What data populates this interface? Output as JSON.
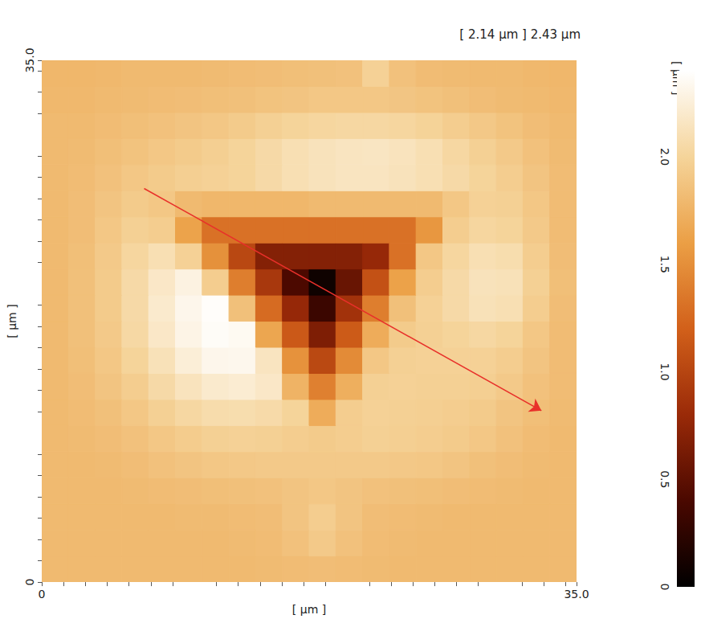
{
  "chart_data": {
    "type": "heatmap",
    "title": "[ 2.14 µm ] 2.43 µm",
    "x_label": "[ µm ]",
    "y_label": "[ µm ]",
    "xlim": [
      0,
      35
    ],
    "ylim": [
      0,
      35
    ],
    "xticks": [
      0,
      {
        "value": 35,
        "label": "35.0"
      }
    ],
    "yticks": [
      0,
      {
        "value": 35,
        "label": "35.0"
      }
    ],
    "x": [
      0.875,
      2.625,
      4.375,
      6.125,
      7.875,
      9.625,
      11.375,
      13.125,
      14.875,
      16.625,
      18.375,
      20.125,
      21.875,
      23.625,
      25.375,
      27.125,
      28.875,
      30.625,
      32.375,
      34.125
    ],
    "y": [
      0.875,
      2.625,
      4.375,
      6.125,
      7.875,
      9.625,
      11.375,
      13.125,
      14.875,
      16.625,
      18.375,
      20.125,
      21.875,
      23.625,
      25.375,
      27.125,
      28.875,
      30.625,
      32.375,
      34.125
    ],
    "z": [
      [
        1.8,
        1.8,
        1.8,
        1.8,
        1.8,
        1.8,
        1.8,
        1.8,
        1.81,
        1.82,
        1.83,
        1.82,
        1.81,
        1.8,
        1.8,
        1.8,
        1.8,
        1.8,
        1.8,
        1.8
      ],
      [
        1.8,
        1.8,
        1.8,
        1.8,
        1.8,
        1.8,
        1.8,
        1.81,
        1.82,
        1.86,
        1.92,
        1.86,
        1.82,
        1.81,
        1.8,
        1.8,
        1.8,
        1.8,
        1.8,
        1.8
      ],
      [
        1.8,
        1.8,
        1.8,
        1.8,
        1.8,
        1.81,
        1.81,
        1.82,
        1.83,
        1.88,
        1.95,
        1.88,
        1.83,
        1.82,
        1.81,
        1.8,
        1.8,
        1.8,
        1.8,
        1.8
      ],
      [
        1.8,
        1.8,
        1.8,
        1.81,
        1.82,
        1.83,
        1.84,
        1.85,
        1.86,
        1.88,
        1.9,
        1.88,
        1.86,
        1.85,
        1.84,
        1.83,
        1.82,
        1.81,
        1.8,
        1.8
      ],
      [
        1.8,
        1.8,
        1.81,
        1.83,
        1.86,
        1.88,
        1.9,
        1.91,
        1.92,
        1.92,
        1.92,
        1.92,
        1.92,
        1.91,
        1.9,
        1.88,
        1.85,
        1.83,
        1.81,
        1.8
      ],
      [
        1.8,
        1.81,
        1.83,
        1.86,
        1.9,
        1.94,
        1.97,
        1.98,
        1.97,
        1.95,
        1.93,
        1.95,
        1.97,
        1.96,
        1.95,
        1.93,
        1.9,
        1.86,
        1.82,
        1.8
      ],
      [
        1.8,
        1.82,
        1.85,
        1.9,
        1.97,
        2.03,
        2.07,
        2.08,
        2.06,
        2.0,
        1.7,
        1.95,
        1.98,
        1.97,
        1.96,
        1.95,
        1.93,
        1.88,
        1.84,
        1.81
      ],
      [
        1.8,
        1.83,
        1.88,
        1.95,
        2.05,
        2.14,
        2.2,
        2.22,
        2.18,
        1.75,
        1.4,
        1.72,
        1.97,
        1.98,
        1.97,
        1.97,
        1.96,
        1.92,
        1.86,
        1.82
      ],
      [
        1.8,
        1.84,
        1.9,
        2.0,
        2.12,
        2.24,
        2.32,
        2.33,
        2.15,
        1.52,
        1.03,
        1.47,
        1.9,
        1.97,
        1.98,
        1.98,
        1.98,
        1.95,
        1.88,
        1.82
      ],
      [
        1.8,
        1.85,
        1.92,
        2.04,
        2.18,
        2.3,
        2.37,
        2.35,
        1.65,
        1.15,
        0.66,
        1.16,
        1.7,
        1.93,
        1.97,
        2.0,
        2.03,
        2.0,
        1.9,
        1.82
      ],
      [
        1.8,
        1.85,
        1.93,
        2.05,
        2.2,
        2.32,
        2.38,
        1.85,
        1.27,
        0.78,
        0.32,
        0.86,
        1.39,
        1.85,
        1.98,
        2.05,
        2.12,
        2.1,
        1.95,
        1.83
      ],
      [
        1.8,
        1.85,
        1.93,
        2.05,
        2.18,
        2.28,
        1.95,
        1.39,
        0.9,
        0.41,
        0.08,
        0.55,
        1.09,
        1.62,
        1.95,
        2.05,
        2.13,
        2.12,
        1.97,
        1.84
      ],
      [
        1.8,
        1.84,
        1.92,
        2.02,
        2.1,
        1.98,
        1.51,
        1.02,
        0.69,
        0.69,
        0.69,
        0.69,
        0.78,
        1.31,
        1.9,
        2.02,
        2.1,
        2.08,
        1.95,
        1.83
      ],
      [
        1.8,
        1.83,
        1.9,
        1.97,
        1.95,
        1.63,
        1.31,
        1.31,
        1.31,
        1.31,
        1.31,
        1.31,
        1.31,
        1.31,
        1.55,
        1.95,
        2.02,
        2.0,
        1.92,
        1.82
      ],
      [
        1.8,
        1.83,
        1.88,
        1.93,
        1.9,
        1.8,
        1.78,
        1.78,
        1.78,
        1.78,
        1.8,
        1.8,
        1.8,
        1.8,
        1.8,
        1.9,
        1.98,
        1.97,
        1.9,
        1.82
      ],
      [
        1.8,
        1.82,
        1.86,
        1.9,
        1.93,
        1.96,
        1.98,
        2.0,
        2.05,
        2.1,
        2.13,
        2.15,
        2.15,
        2.13,
        2.1,
        2.05,
        2.0,
        1.95,
        1.88,
        1.82
      ],
      [
        1.8,
        1.81,
        1.84,
        1.87,
        1.9,
        1.93,
        1.96,
        2.0,
        2.05,
        2.1,
        2.13,
        2.15,
        2.16,
        2.14,
        2.1,
        2.03,
        1.97,
        1.92,
        1.86,
        1.81
      ],
      [
        1.8,
        1.8,
        1.82,
        1.84,
        1.86,
        1.88,
        1.9,
        1.93,
        1.97,
        2.0,
        2.02,
        2.03,
        2.03,
        2.02,
        1.99,
        1.95,
        1.91,
        1.87,
        1.83,
        1.8
      ],
      [
        1.79,
        1.79,
        1.8,
        1.81,
        1.82,
        1.83,
        1.84,
        1.85,
        1.87,
        1.88,
        1.9,
        1.9,
        1.9,
        1.89,
        1.87,
        1.85,
        1.83,
        1.81,
        1.8,
        1.79
      ],
      [
        1.78,
        1.78,
        1.79,
        1.8,
        1.8,
        1.8,
        1.81,
        1.82,
        1.83,
        1.84,
        1.85,
        1.86,
        1.98,
        1.86,
        1.82,
        1.81,
        1.8,
        1.8,
        1.79,
        1.78
      ]
    ],
    "colorbar_label": "[ µm ]",
    "colorbar_range": [
      0,
      2.4
    ],
    "colorbar_ticks": [
      0,
      0.5,
      {
        "value": 1,
        "label": "1.0"
      },
      1.5,
      {
        "value": 2,
        "label": "2.0"
      }
    ],
    "profile_line": {
      "start": [
        6.7,
        26.4
      ],
      "end": [
        32.7,
        11.5
      ],
      "color": "#e8302a"
    }
  }
}
